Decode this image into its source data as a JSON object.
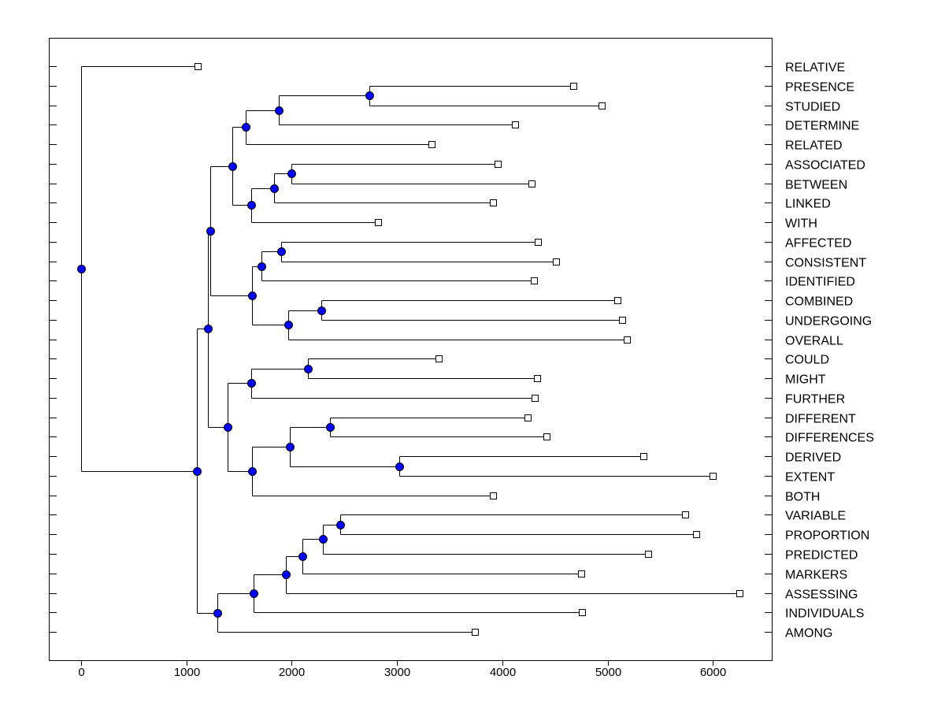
{
  "chart_data": {
    "type": "dendrogram",
    "title": "",
    "xlabel": "",
    "ylabel": "",
    "xlim": [
      -300,
      6600
    ],
    "xticks": [
      0,
      1000,
      2000,
      3000,
      4000,
      5000,
      6000
    ],
    "tick_labels": [
      "0",
      "1000",
      "2000",
      "3000",
      "4000",
      "5000",
      "6000"
    ],
    "colors": {
      "node": "#0000ff",
      "leaf": "#ffffff",
      "line": "#000000"
    },
    "tree": {
      "h": 0,
      "c": [
        {
          "label": "RELATIVE",
          "v": 1107
        },
        {
          "h": 1100,
          "c": [
            {
              "h": 1204,
              "c": [
                {
                  "h": 1227,
                  "c": [
                    {
                      "h": 1436,
                      "c": [
                        {
                          "h": 1563,
                          "c": [
                            {
                              "h": 1877,
                              "c": [
                                {
                                  "h": 2737,
                                  "c": [
                                    {
                                      "label": "PRESENCE",
                                      "v": 4675
                                    },
                                    {
                                      "label": "STUDIED",
                                      "v": 4944
                                    }
                                  ]
                                },
                                {
                                  "label": "DETERMINE",
                                  "v": 4121
                                }
                              ]
                            },
                            {
                              "label": "RELATED",
                              "v": 3328
                            }
                          ]
                        },
                        {
                          "h": 1616,
                          "c": [
                            {
                              "h": 1832,
                              "c": [
                                {
                                  "h": 1997,
                                  "c": [
                                    {
                                      "label": "ASSOCIATED",
                                      "v": 3957
                                    },
                                    {
                                      "label": "BETWEEN",
                                      "v": 4278
                                    }
                                  ]
                                },
                                {
                                  "label": "LINKED",
                                  "v": 3912
                                }
                              ]
                            },
                            {
                              "label": "WITH",
                              "v": 2820
                            }
                          ]
                        }
                      ]
                    },
                    {
                      "h": 1623,
                      "c": [
                        {
                          "h": 1713,
                          "c": [
                            {
                              "h": 1900,
                              "c": [
                                {
                                  "label": "AFFECTED",
                                  "v": 4338
                                },
                                {
                                  "label": "CONSISTENT",
                                  "v": 4510
                                }
                              ]
                            },
                            {
                              "label": "IDENTIFIED",
                              "v": 4301
                            }
                          ]
                        },
                        {
                          "h": 1967,
                          "c": [
                            {
                              "h": 2281,
                              "c": [
                                {
                                  "label": "COMBINED",
                                  "v": 5093
                                },
                                {
                                  "label": "UNDERGOING",
                                  "v": 5138
                                }
                              ]
                            },
                            {
                              "label": "OVERALL",
                              "v": 5183
                            }
                          ]
                        }
                      ]
                    }
                  ]
                },
                {
                  "h": 1391,
                  "c": [
                    {
                      "h": 1616,
                      "c": [
                        {
                          "h": 2154,
                          "c": [
                            {
                              "label": "COULD",
                              "v": 3396
                            },
                            {
                              "label": "MIGHT",
                              "v": 4331
                            }
                          ]
                        },
                        {
                          "label": "FURTHER",
                          "v": 4308
                        }
                      ]
                    },
                    {
                      "h": 1623,
                      "c": [
                        {
                          "h": 1982,
                          "c": [
                            {
                              "h": 2363,
                              "c": [
                                {
                                  "label": "DIFFERENT",
                                  "v": 4241
                                },
                                {
                                  "label": "DIFFERENCES",
                                  "v": 4420
                                }
                              ]
                            },
                            {
                              "h": 3022,
                              "c": [
                                {
                                  "label": "DERIVED",
                                  "v": 5340
                                },
                                {
                                  "label": "EXTENT",
                                  "v": 5998
                                }
                              ]
                            }
                          ]
                        },
                        {
                          "label": "BOTH",
                          "v": 3912
                        }
                      ]
                    }
                  ]
                }
              ]
            },
            {
              "h": 1294,
              "c": [
                {
                  "h": 1638,
                  "c": [
                    {
                      "h": 1945,
                      "c": [
                        {
                          "h": 2102,
                          "c": [
                            {
                              "h": 2296,
                              "c": [
                                {
                                  "h": 2461,
                                  "c": [
                                    {
                                      "label": "VARIABLE",
                                      "v": 5737
                                    },
                                    {
                                      "label": "PROPORTION",
                                      "v": 5841
                                    }
                                  ]
                                },
                                {
                                  "label": "PREDICTED",
                                  "v": 5385
                                }
                              ]
                            },
                            {
                              "label": "MARKERS",
                              "v": 4749
                            }
                          ]
                        },
                        {
                          "label": "ASSESSING",
                          "v": 6253
                        }
                      ]
                    },
                    {
                      "label": "INDIVIDUALS",
                      "v": 4757
                    }
                  ]
                },
                {
                  "label": "AMONG",
                  "v": 3740
                }
              ]
            }
          ]
        }
      ]
    }
  }
}
